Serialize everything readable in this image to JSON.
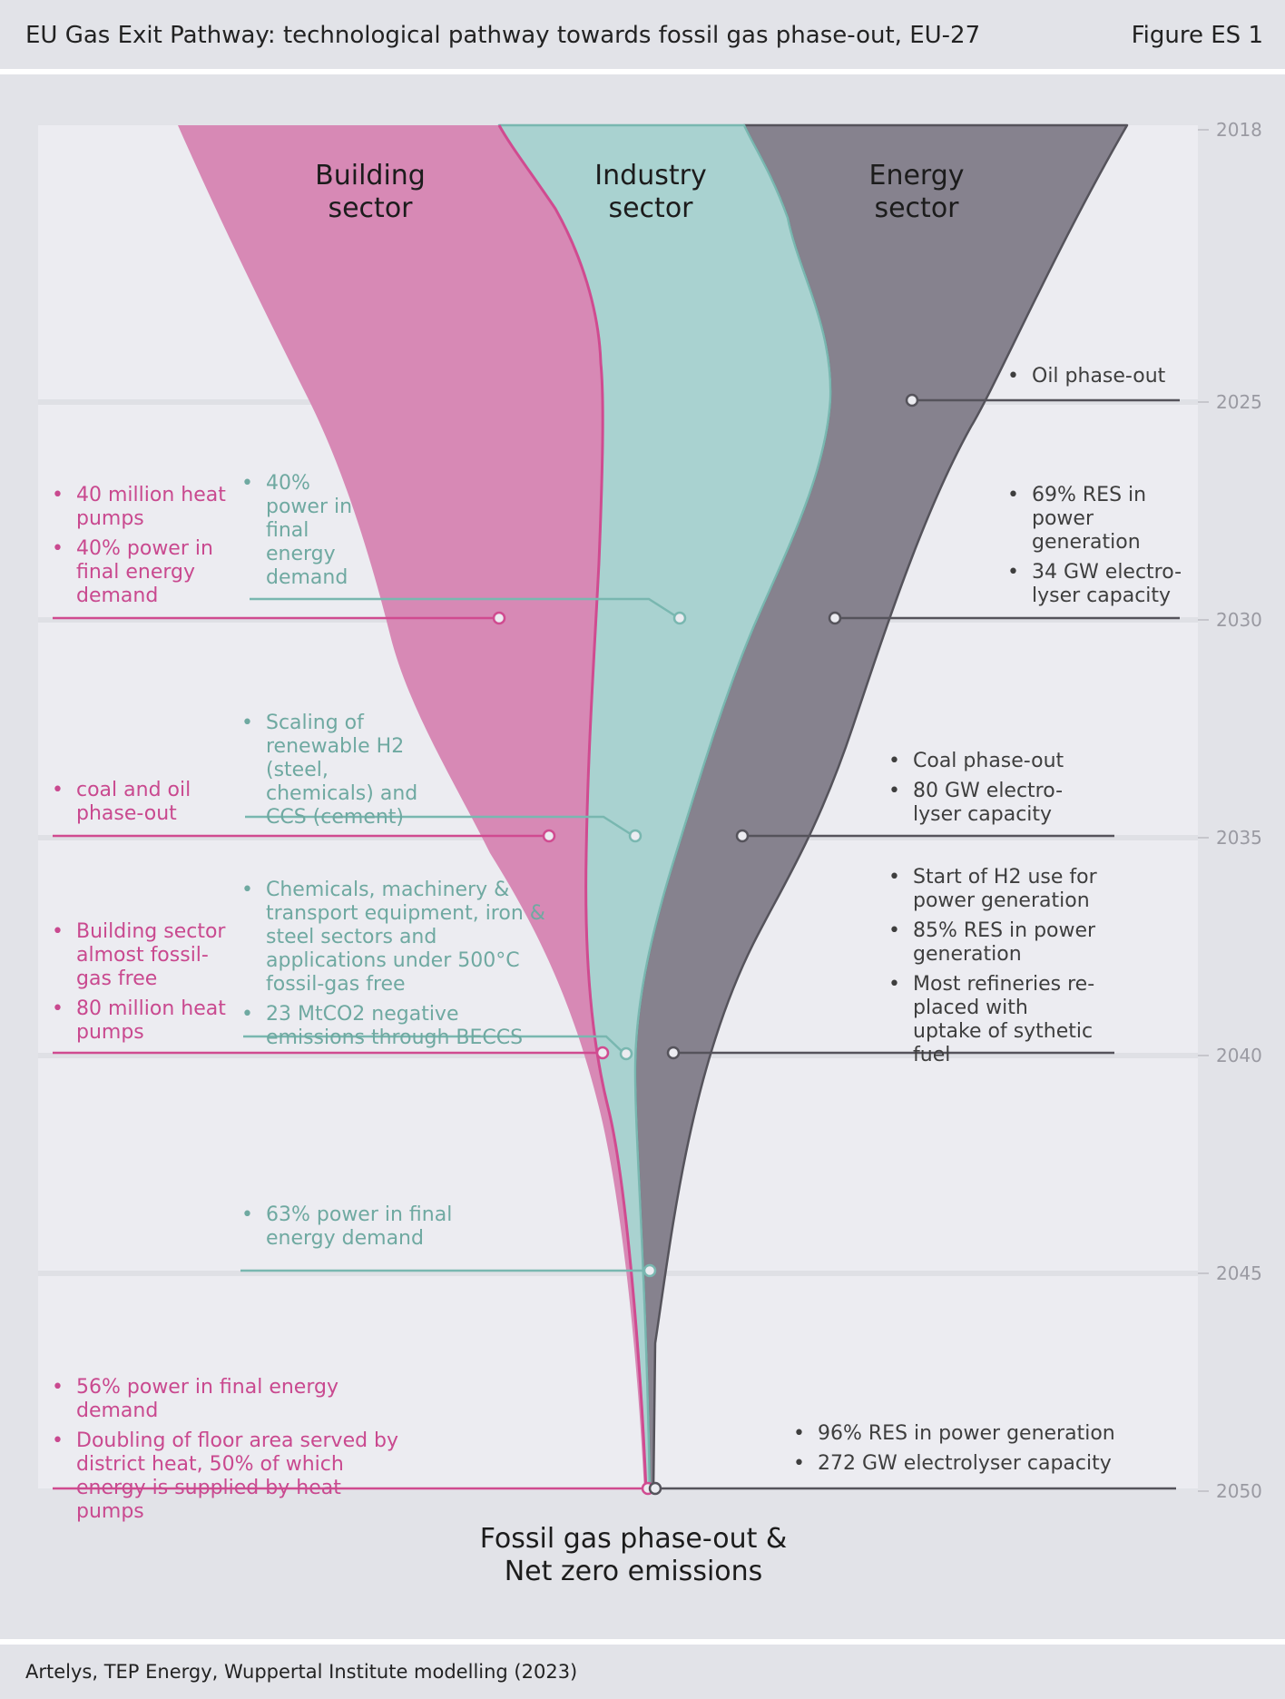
{
  "header": {
    "title": "EU Gas Exit Pathway: technological pathway towards fossil gas phase-out, EU-27",
    "figure_label": "Figure ES 1"
  },
  "footer": {
    "source": "Artelys, TEP Energy, Wuppertal Institute modelling (2023)"
  },
  "sectors": {
    "building": [
      "Building",
      "sector"
    ],
    "industry": [
      "Industry",
      "sector"
    ],
    "energy": [
      "Energy",
      "sector"
    ]
  },
  "years": [
    "2018",
    "2025",
    "2030",
    "2035",
    "2040",
    "2045",
    "2050"
  ],
  "bottom_note": [
    "Fossil gas phase-out &",
    "Net zero emissions"
  ],
  "colors": {
    "building": "#d789b5",
    "building_line": "#d04b90",
    "industry": "#a9d2d0",
    "industry_line": "#79b7b0",
    "energy": "#86828e",
    "energy_line": "#55535b",
    "background": "#e2e3e8",
    "plot_area": "#ececf1"
  },
  "milestones": {
    "2025": {
      "energy": [
        "Oil phase-out"
      ]
    },
    "2030": {
      "building": [
        "40 million heat pumps",
        "40% power in final energy demand"
      ],
      "industry": [
        "40% power in final energy demand"
      ],
      "energy": [
        "69% RES in power generation",
        "34 GW electro-lyser capacity"
      ]
    },
    "2035": {
      "building": [
        "coal and oil phase-out"
      ],
      "industry": [
        "Scaling of renewable H2 (steel, chemicals) and CCS (cement)"
      ],
      "energy": [
        "Coal phase-out",
        "80 GW electro-lyser capacity"
      ]
    },
    "2040": {
      "building": [
        "Building sector almost fossil-gas free",
        "80 million heat pumps"
      ],
      "industry": [
        "Chemicals, machinery & transport equipment, iron & steel sectors and applications under 500°C fossil-gas free",
        "23 MtCO2 negative emissions through BECCS"
      ],
      "energy": [
        "Start of H2 use for power generation",
        "85% RES in power generation",
        "Most refineries re-placed with uptake of sythetic fuel"
      ]
    },
    "2045": {
      "industry": [
        "63% power in final energy demand"
      ]
    },
    "2050": {
      "building": [
        "56% power in final energy demand",
        "Doubling of floor area served by district heat, 50% of which energy is supplied by heat pumps"
      ],
      "energy": [
        "96% RES in power generation",
        "272 GW electrolyser capacity"
      ]
    }
  }
}
